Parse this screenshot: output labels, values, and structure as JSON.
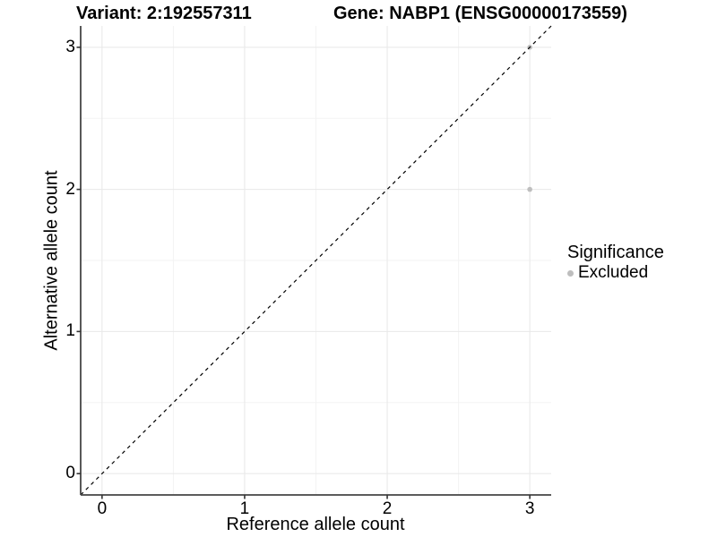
{
  "chart_data": {
    "type": "scatter",
    "titles": {
      "variant": "Variant: 2:192557311",
      "gene": "Gene: NABP1 (ENSG00000173559)"
    },
    "xlabel": "Reference allele count",
    "ylabel": "Alternative allele count",
    "x_ticks": [
      0,
      1,
      2,
      3
    ],
    "y_ticks": [
      0,
      1,
      2,
      3
    ],
    "xlim": [
      -0.15,
      3.15
    ],
    "ylim": [
      -0.15,
      3.15
    ],
    "grid": {
      "major": [
        0,
        1,
        2,
        3
      ],
      "minor": [
        0.5,
        1.5,
        2.5
      ]
    },
    "points": [
      {
        "x": 3,
        "y": 2,
        "significance": "Excluded"
      },
      {
        "x": 3,
        "y": 3,
        "significance": "Excluded"
      }
    ],
    "identity_line": {
      "slope": 1,
      "intercept": 0,
      "style": "dashed",
      "color": "#000000"
    },
    "legend": {
      "title": "Significance",
      "position": "right",
      "entries": [
        {
          "label": "Excluded",
          "color": "#bebebe"
        }
      ]
    },
    "colors": {
      "point": "#bebebe",
      "grid_major": "#e8e8e8",
      "grid_minor": "#f3f3f3",
      "axis_line": "#454545",
      "tick_mark": "#333333",
      "background": "#ffffff"
    }
  }
}
